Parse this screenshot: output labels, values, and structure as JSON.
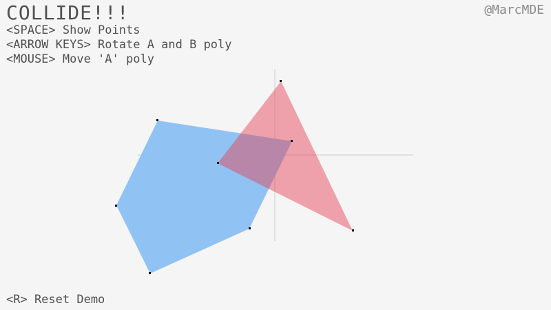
{
  "header": {
    "title": "COLLIDE!!!",
    "credit": "@MarcMDE",
    "instructions": [
      "<SPACE> Show Points",
      "<ARROW KEYS> Rotate A and B poly",
      "<MOUSE> Move 'A' poly"
    ]
  },
  "footer": {
    "reset": "<R> Reset Demo"
  },
  "colors": {
    "background": "#f5f5f5",
    "text": "#505050",
    "poly_a": "#90c3f3",
    "poly_b": "#e63c50",
    "axes": "#cccccc"
  }
}
